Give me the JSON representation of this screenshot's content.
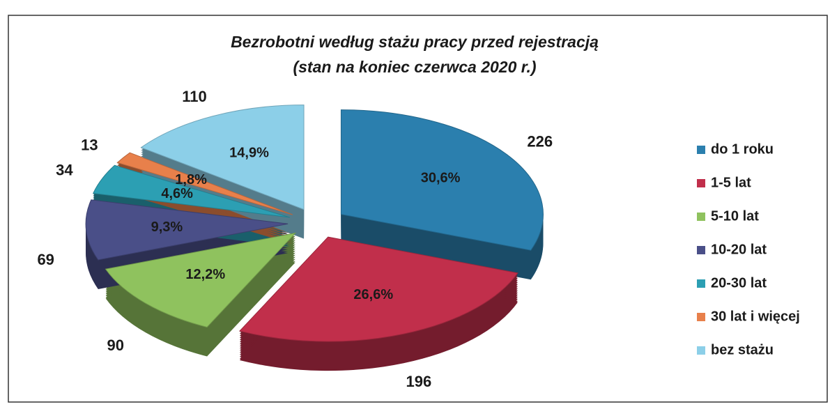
{
  "chart_data": {
    "type": "pie",
    "title": "Bezrobotni według stażu pracy przed rejestracją",
    "subtitle": "(stan na koniec czerwca 2020 r.)",
    "categories": [
      "do 1 roku",
      "1-5 lat",
      "5-10 lat",
      "10-20 lat",
      "20-30 lat",
      "30 lat i więcej",
      "bez stażu"
    ],
    "values": [
      226,
      196,
      90,
      69,
      34,
      13,
      110
    ],
    "percentages": [
      30.6,
      26.6,
      12.2,
      9.3,
      4.6,
      1.8,
      14.9
    ],
    "percentage_labels": [
      "30,6%",
      "26,6%",
      "12,2%",
      "9,3%",
      "4,6%",
      "1,8%",
      "14,9%"
    ],
    "colors": [
      "#2b7fae",
      "#c12f4b",
      "#8fc25e",
      "#4a4f88",
      "#2c9fb3",
      "#e8804b",
      "#8ccfe8"
    ],
    "legend": "right"
  }
}
